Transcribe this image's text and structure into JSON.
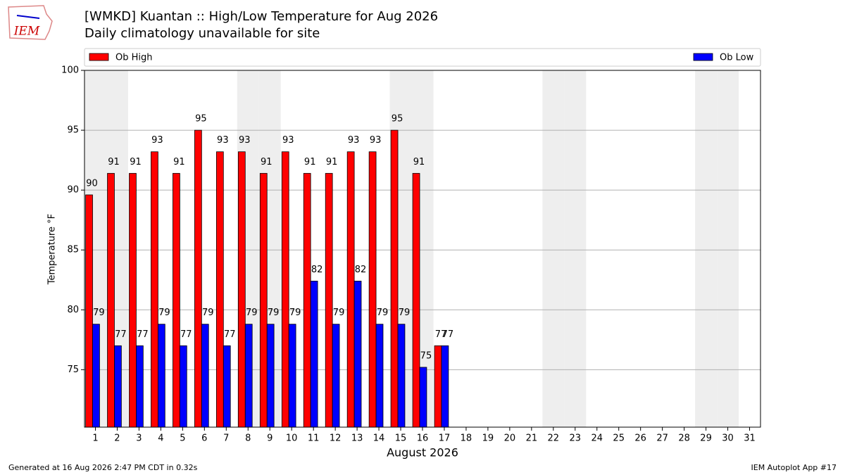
{
  "logo_text": "IEM",
  "chart_data": {
    "type": "bar",
    "title": "[WMKD] Kuantan :: High/Low Temperature for Aug 2026",
    "subtitle": "Daily climatology unavailable for site",
    "ylabel": "Temperature °F",
    "xlabel": "August 2026",
    "categories": [
      "1",
      "2",
      "3",
      "4",
      "5",
      "6",
      "7",
      "8",
      "9",
      "10",
      "11",
      "12",
      "13",
      "14",
      "15",
      "16",
      "17",
      "18",
      "19",
      "20",
      "21",
      "22",
      "23",
      "24",
      "25",
      "26",
      "27",
      "28",
      "29",
      "30",
      "31"
    ],
    "series": [
      {
        "name": "Ob High",
        "color": "#ff0000",
        "values": [
          89.6,
          91.4,
          91.4,
          93.2,
          91.4,
          95,
          93.2,
          93.2,
          91.4,
          93.2,
          91.4,
          91.4,
          93.2,
          93.2,
          95,
          91.4,
          77,
          null,
          null,
          null,
          null,
          null,
          null,
          null,
          null,
          null,
          null,
          null,
          null,
          null,
          null
        ],
        "value_labels": [
          "90",
          "91",
          "91",
          "93",
          "91",
          "95",
          "93",
          "93",
          "91",
          "93",
          "91",
          "91",
          "93",
          "93",
          "95",
          "91",
          "77",
          null,
          null,
          null,
          null,
          null,
          null,
          null,
          null,
          null,
          null,
          null,
          null,
          null,
          null
        ]
      },
      {
        "name": "Ob Low",
        "color": "#0000ff",
        "values": [
          78.8,
          77,
          77,
          78.8,
          77,
          78.8,
          77,
          78.8,
          78.8,
          78.8,
          82.4,
          78.8,
          82.4,
          78.8,
          78.8,
          75.2,
          77,
          null,
          null,
          null,
          null,
          null,
          null,
          null,
          null,
          null,
          null,
          null,
          null,
          null,
          null
        ],
        "value_labels": [
          "79",
          "77",
          "77",
          "79",
          "77",
          "79",
          "77",
          "79",
          "79",
          "79",
          "82",
          "79",
          "82",
          "79",
          "79",
          "75",
          "77",
          null,
          null,
          null,
          null,
          null,
          null,
          null,
          null,
          null,
          null,
          null,
          null,
          null,
          null
        ]
      }
    ],
    "ylim": [
      70.2,
      100
    ],
    "yticks": [
      75,
      80,
      85,
      90,
      95,
      100
    ],
    "grid": true,
    "footer_left": "Generated at 16 Aug 2026 2:47 PM CDT in 0.32s",
    "footer_right": "IEM Autoplot App #17"
  }
}
